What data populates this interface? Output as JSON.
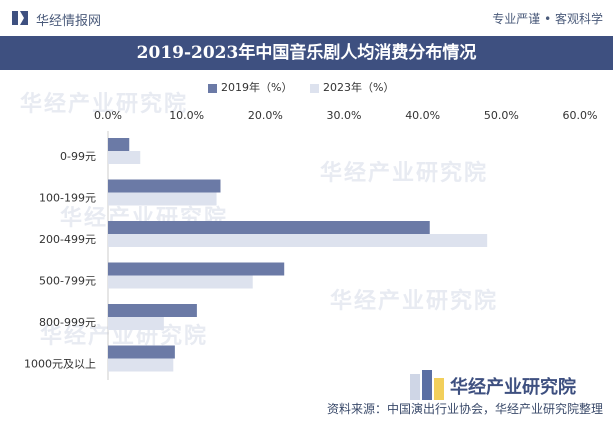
{
  "header": {
    "brand": "华经情报网",
    "slogan": "专业严谨 • 客观科学"
  },
  "title": "2019-2023年中国音乐剧人均消费分布情况",
  "watermark": "华经产业研究院",
  "footer": {
    "brand": "华经产业研究院",
    "source": "资料来源：中国演出行业协会，华经产业研究院整理"
  },
  "colors": {
    "series1": "#6b7aa6",
    "series2": "#dde2ee",
    "title_bg": "#3e5080"
  },
  "chart_data": {
    "type": "bar",
    "orientation": "horizontal",
    "categories": [
      "0-99元",
      "100-199元",
      "200-499元",
      "500-799元",
      "800-999元",
      "1000元及以上"
    ],
    "series": [
      {
        "name": "2019年（%）",
        "values": [
          2.7,
          14.3,
          40.9,
          22.4,
          11.3,
          8.5
        ]
      },
      {
        "name": "2023年（%）",
        "values": [
          4.1,
          13.8,
          48.2,
          18.4,
          7.1,
          8.3
        ]
      }
    ],
    "xlim": [
      0,
      60
    ],
    "x_ticks": [
      "0.0%",
      "10.0%",
      "20.0%",
      "30.0%",
      "40.0%",
      "50.0%",
      "60.0%"
    ],
    "legend_position": "top"
  }
}
